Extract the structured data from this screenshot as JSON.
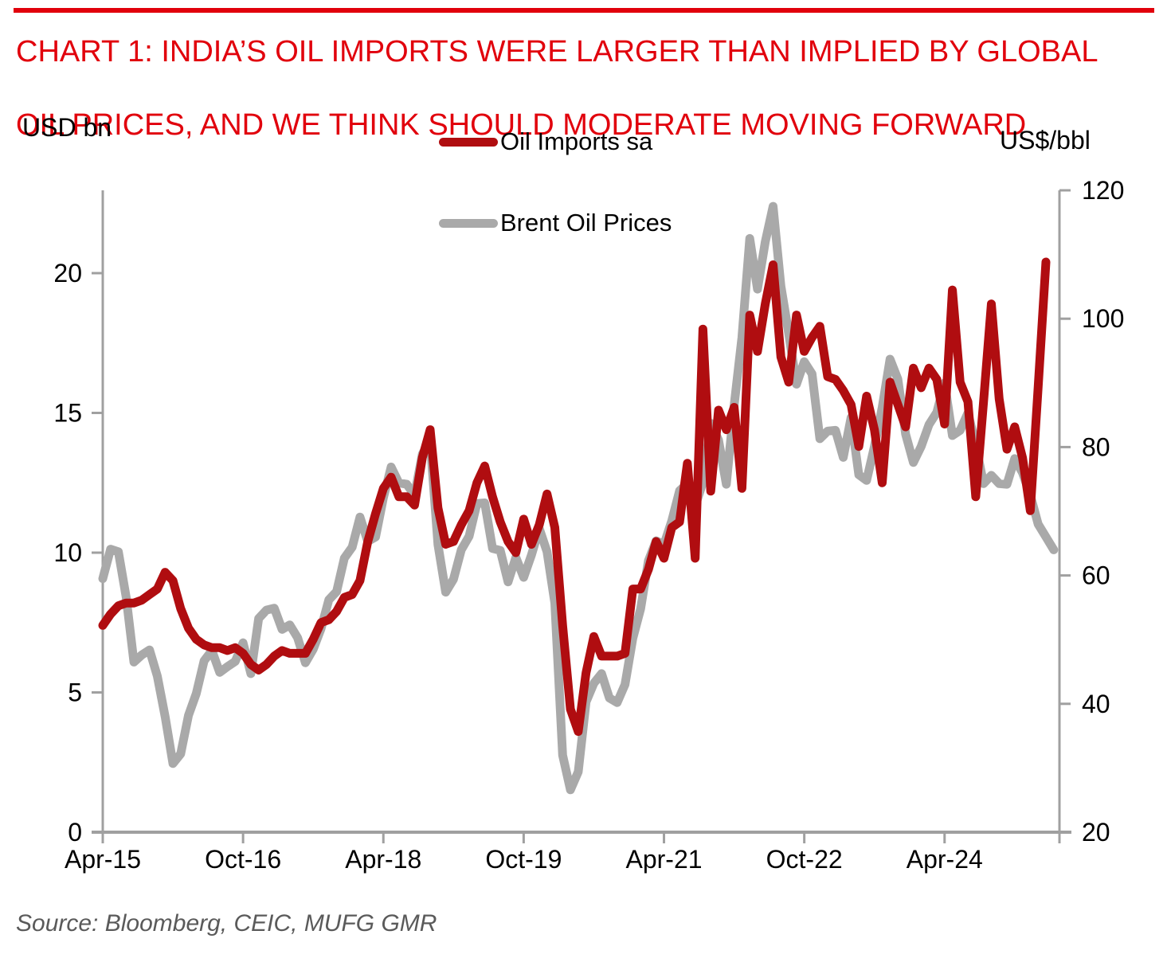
{
  "header": {
    "title_line1": "CHART 1: INDIA’S OIL IMPORTS WERE LARGER THAN IMPLIED BY GLOBAL",
    "title_line2": "OIL PRICES, AND WE THINK SHOULD MODERATE MOVING FORWARD",
    "title_color": "#e1000c",
    "rule_color": "#e1000c"
  },
  "axis_left_label": "USD bn",
  "axis_right_label": "US$/bbl",
  "source": "Source: Bloomberg, CEIC, MUFG GMR",
  "legend": [
    {
      "label": "Oil Imports sa",
      "color": "#b00d10"
    },
    {
      "label": "Brent Oil Prices",
      "color": "#a9a9a9"
    }
  ],
  "chart_data": {
    "type": "line",
    "x_frequency": "monthly",
    "x_start": "Apr-2015",
    "x_tick_labels": [
      "Apr-15",
      "Oct-16",
      "Apr-18",
      "Oct-19",
      "Apr-21",
      "Oct-22",
      "Apr-24"
    ],
    "x_tick_month_index": [
      0,
      18,
      36,
      54,
      72,
      90,
      108
    ],
    "left_axis": {
      "label": "USD bn",
      "ticks": [
        0,
        5,
        10,
        15,
        20
      ],
      "range": [
        0,
        23
      ]
    },
    "right_axis": {
      "label": "US$/bbl",
      "ticks": [
        20,
        40,
        60,
        80,
        100,
        120
      ],
      "range": [
        20,
        120
      ]
    },
    "grid": false,
    "legend_position": "top-center",
    "axis_color": "#a0a0a0",
    "tick_label_color": "#000000",
    "series": [
      {
        "name": "Oil Imports sa",
        "axis": "left",
        "color": "#b00d10",
        "start_month": "Apr-2015",
        "end_month": "May-2025",
        "values": [
          7.4,
          7.8,
          8.1,
          8.2,
          8.2,
          8.3,
          8.5,
          8.7,
          9.3,
          9.0,
          8.0,
          7.3,
          6.9,
          6.7,
          6.6,
          6.6,
          6.5,
          6.6,
          6.4,
          6.0,
          5.8,
          6.0,
          6.3,
          6.5,
          6.4,
          6.4,
          6.4,
          6.9,
          7.5,
          7.6,
          7.9,
          8.4,
          8.5,
          9.0,
          10.4,
          11.4,
          12.3,
          12.7,
          12.0,
          12.0,
          11.7,
          13.4,
          14.4,
          11.6,
          10.3,
          10.4,
          11.0,
          11.5,
          12.5,
          13.1,
          12.0,
          11.1,
          10.4,
          10.0,
          11.2,
          10.3,
          11.0,
          12.1,
          10.9,
          7.4,
          4.4,
          3.6,
          5.7,
          7.0,
          6.3,
          6.3,
          6.3,
          6.4,
          8.7,
          8.7,
          9.4,
          10.4,
          9.8,
          10.9,
          11.1,
          13.2,
          9.8,
          18.0,
          12.2,
          15.1,
          14.4,
          15.2,
          12.3,
          18.5,
          17.2,
          18.9,
          20.3,
          17.0,
          16.1,
          18.5,
          17.2,
          17.7,
          18.1,
          16.3,
          16.2,
          15.8,
          15.3,
          13.8,
          15.6,
          14.4,
          12.5,
          16.1,
          15.3,
          14.5,
          16.6,
          15.9,
          16.6,
          16.2,
          14.6,
          19.4,
          16.1,
          15.4,
          12.0,
          15.4,
          18.9,
          15.5,
          13.7,
          14.5,
          13.4,
          11.5,
          15.9,
          20.4
        ]
      },
      {
        "name": "Brent Oil Prices",
        "axis": "right",
        "color": "#a9a9a9",
        "start_month": "Apr-2015",
        "end_month": "Jun-2025",
        "values": [
          59.5,
          64.1,
          63.7,
          56.6,
          46.5,
          47.6,
          48.4,
          44.3,
          38.0,
          30.7,
          32.2,
          38.2,
          41.6,
          46.7,
          48.3,
          44.9,
          45.8,
          46.6,
          49.5,
          44.7,
          53.3,
          54.6,
          54.9,
          51.6,
          52.3,
          50.3,
          46.4,
          48.5,
          51.7,
          56.2,
          57.5,
          62.7,
          64.4,
          69.1,
          65.3,
          66.0,
          72.1,
          76.9,
          74.4,
          74.2,
          72.5,
          78.9,
          81.0,
          64.8,
          57.4,
          59.4,
          64.0,
          66.1,
          71.2,
          71.3,
          64.2,
          63.9,
          59.0,
          62.8,
          59.7,
          63.2,
          67.3,
          63.7,
          55.7,
          32.0,
          26.6,
          29.4,
          40.3,
          43.2,
          44.7,
          40.9,
          40.2,
          43.0,
          50.2,
          54.8,
          62.3,
          65.4,
          64.8,
          68.5,
          73.2,
          74.3,
          70.8,
          74.5,
          83.7,
          81.1,
          74.2,
          86.5,
          97.1,
          112.5,
          104.6,
          112.0,
          117.5,
          105.1,
          97.7,
          89.8,
          93.3,
          91.4,
          81.3,
          82.5,
          82.6,
          78.4,
          84.6,
          75.7,
          74.8,
          80.1,
          86.2,
          93.7,
          90.6,
          82.0,
          77.6,
          80.1,
          83.5,
          85.4,
          90.0,
          81.8,
          82.6,
          85.3,
          80.4,
          74.3,
          75.6,
          74.3,
          74.2,
          78.2,
          76.0,
          72.5,
          68.0,
          66.0,
          64.0
        ]
      }
    ]
  }
}
